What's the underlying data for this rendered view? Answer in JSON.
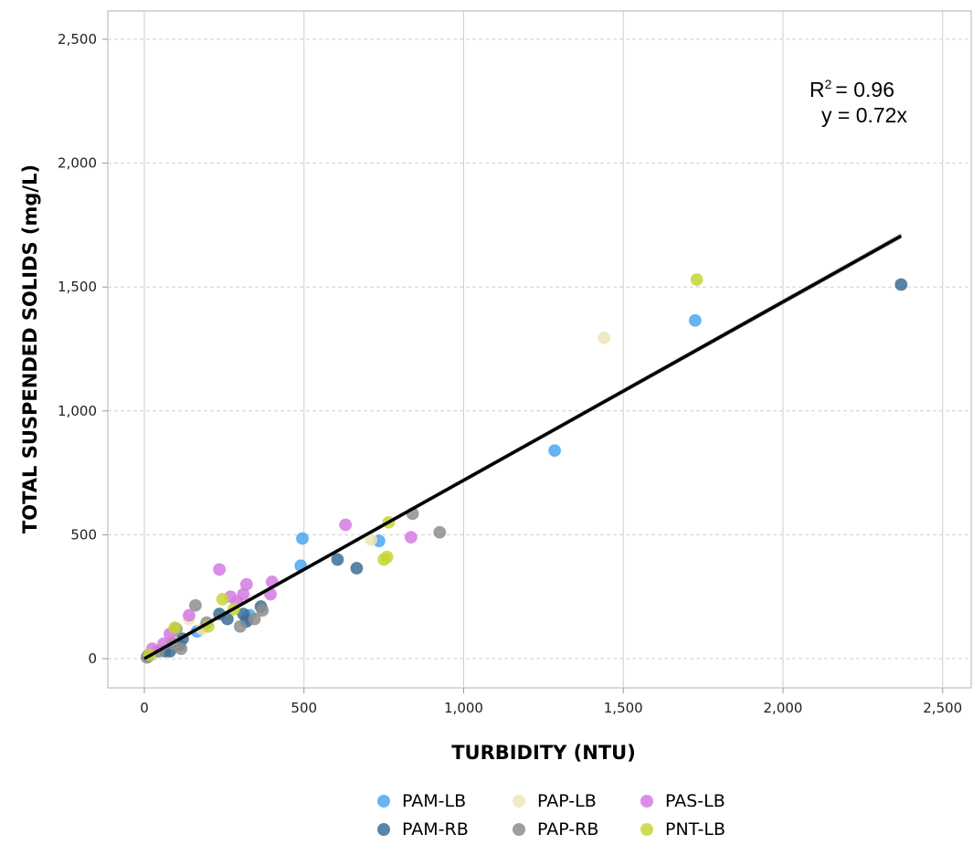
{
  "chart_data": {
    "type": "scatter",
    "xlabel": "TURBIDITY (NTU)",
    "ylabel": "TOTAL SUSPENDED SOLIDS (mg/L)",
    "xlim": [
      -120,
      2600
    ],
    "ylim": [
      -120,
      2600
    ],
    "x_ticks": [
      0,
      500,
      1000,
      1500,
      2000,
      2500
    ],
    "x_tick_labels": [
      "0",
      "500",
      "1,000",
      "1,500",
      "2,000",
      "2,500"
    ],
    "y_ticks": [
      0,
      500,
      1000,
      1500,
      2000,
      2500
    ],
    "y_tick_labels": [
      "0",
      "500",
      "1,000",
      "1,500",
      "2,000",
      "2,500"
    ],
    "grid": true,
    "legend_position": "bottom",
    "annotation": {
      "r2_prefix": "R",
      "r2_sup": "2",
      "r2_value": "= 0.96",
      "equation": "y = 0.72x"
    },
    "fit": {
      "slope": 0.72,
      "x_range": [
        0,
        2370
      ],
      "line_color": "#000000",
      "band_color": "#9a9a9a"
    },
    "series": [
      {
        "name": "PAM-LB",
        "color": "#4da6f0",
        "points": [
          [
            10,
            10
          ],
          [
            40,
            30
          ],
          [
            95,
            70
          ],
          [
            165,
            110
          ],
          [
            320,
            160
          ],
          [
            330,
            175
          ],
          [
            490,
            375
          ],
          [
            495,
            485
          ],
          [
            735,
            475
          ],
          [
            1285,
            840
          ],
          [
            1725,
            1365
          ]
        ]
      },
      {
        "name": "PAM-RB",
        "color": "#3d6f96",
        "points": [
          [
            12,
            12
          ],
          [
            25,
            18
          ],
          [
            65,
            30
          ],
          [
            80,
            30
          ],
          [
            110,
            55
          ],
          [
            120,
            80
          ],
          [
            235,
            180
          ],
          [
            260,
            160
          ],
          [
            310,
            180
          ],
          [
            320,
            150
          ],
          [
            365,
            210
          ],
          [
            605,
            400
          ],
          [
            665,
            365
          ],
          [
            2370,
            1510
          ]
        ]
      },
      {
        "name": "PAP-LB",
        "color": "#ece6b8",
        "points": [
          [
            30,
            20
          ],
          [
            85,
            75
          ],
          [
            140,
            160
          ],
          [
            180,
            120
          ],
          [
            710,
            480
          ],
          [
            1440,
            1295
          ]
        ]
      },
      {
        "name": "PAP-RB",
        "color": "#8e8e8e",
        "points": [
          [
            8,
            5
          ],
          [
            45,
            30
          ],
          [
            90,
            60
          ],
          [
            100,
            120
          ],
          [
            115,
            40
          ],
          [
            160,
            215
          ],
          [
            195,
            145
          ],
          [
            300,
            130
          ],
          [
            345,
            160
          ],
          [
            370,
            195
          ],
          [
            840,
            585
          ],
          [
            925,
            510
          ]
        ]
      },
      {
        "name": "PAS-LB",
        "color": "#d57ae3",
        "points": [
          [
            25,
            40
          ],
          [
            60,
            60
          ],
          [
            80,
            100
          ],
          [
            140,
            175
          ],
          [
            235,
            360
          ],
          [
            270,
            250
          ],
          [
            290,
            230
          ],
          [
            310,
            260
          ],
          [
            320,
            300
          ],
          [
            395,
            260
          ],
          [
            400,
            310
          ],
          [
            630,
            540
          ],
          [
            835,
            490
          ]
        ]
      },
      {
        "name": "PNT-LB",
        "color": "#c6d636",
        "points": [
          [
            15,
            15
          ],
          [
            95,
            125
          ],
          [
            200,
            130
          ],
          [
            245,
            240
          ],
          [
            280,
            200
          ],
          [
            750,
            400
          ],
          [
            760,
            410
          ],
          [
            765,
            550
          ],
          [
            1730,
            1530
          ]
        ]
      }
    ]
  }
}
